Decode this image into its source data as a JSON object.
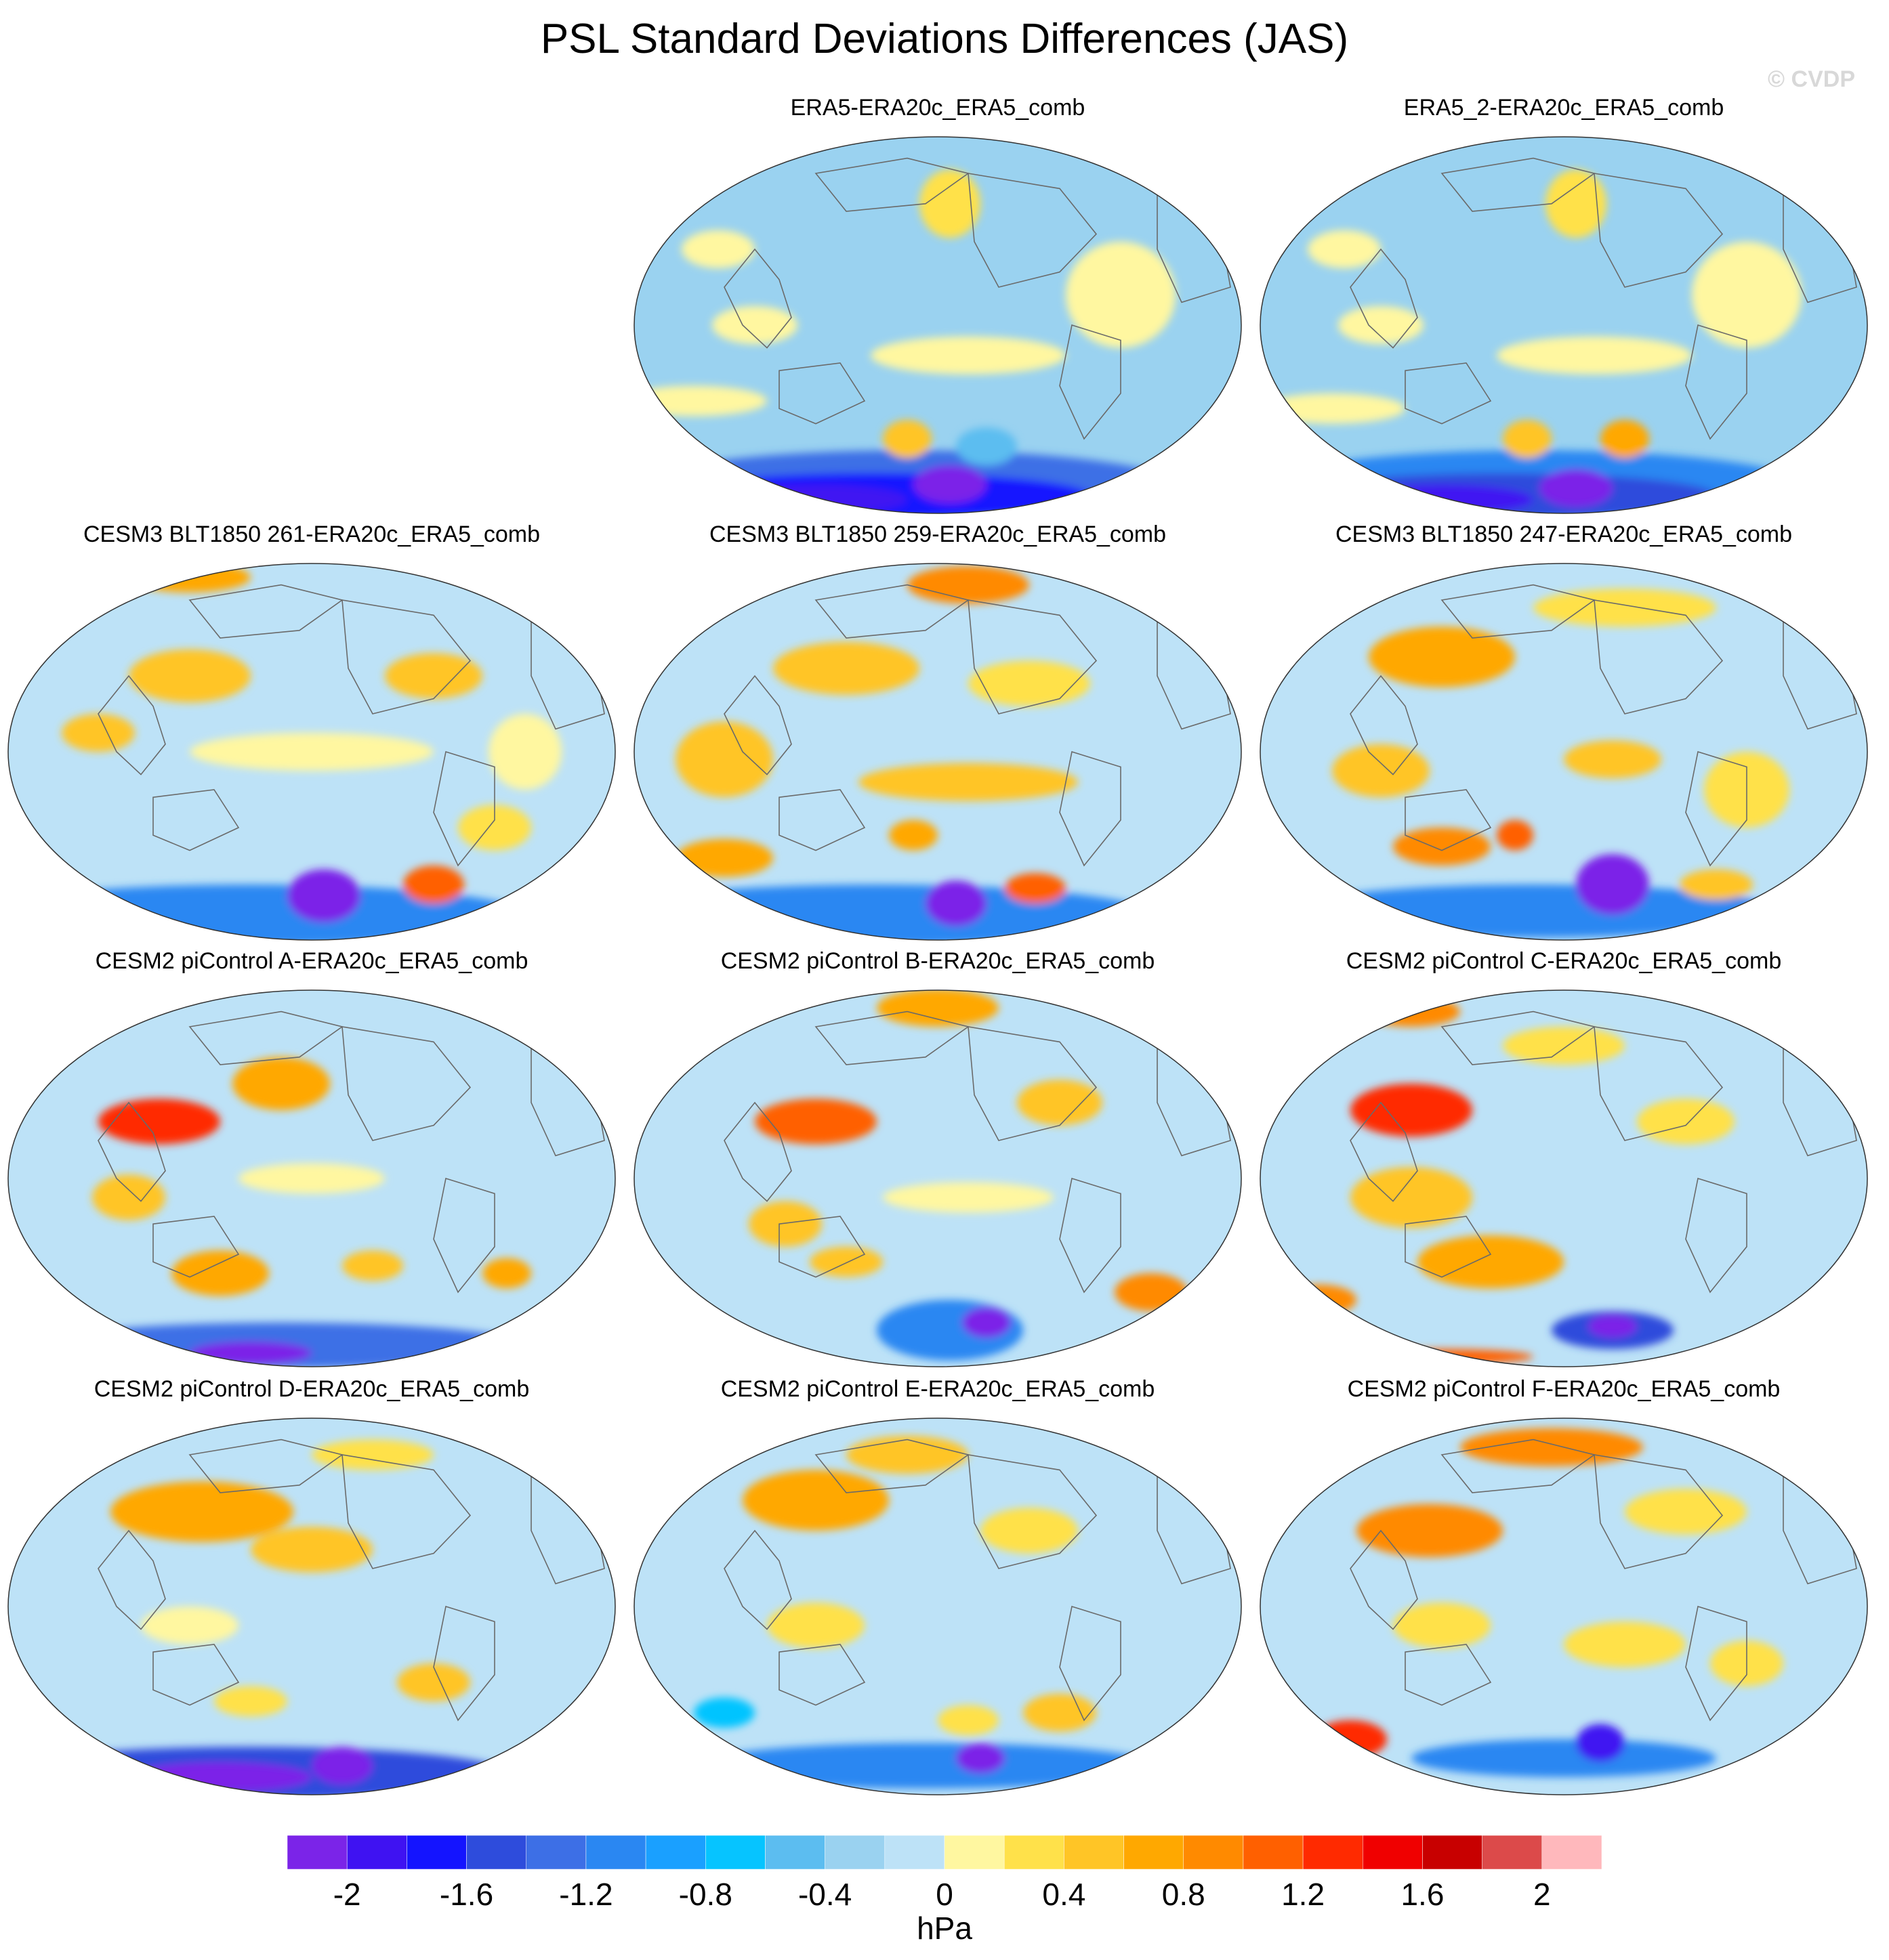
{
  "title": "PSL Standard Deviations Differences (JAS)",
  "watermark": "© CVDP",
  "panels": [
    {
      "title": "ERA5-ERA20c_ERA5_comb",
      "col": 1,
      "row": 0,
      "pattern": "obs1"
    },
    {
      "title": "ERA5_2-ERA20c_ERA5_comb",
      "col": 2,
      "row": 0,
      "pattern": "obs2"
    },
    {
      "title": "CESM3 BLT1850 261-ERA20c_ERA5_comb",
      "col": 0,
      "row": 1,
      "pattern": "b261"
    },
    {
      "title": "CESM3 BLT1850 259-ERA20c_ERA5_comb",
      "col": 1,
      "row": 1,
      "pattern": "b259"
    },
    {
      "title": "CESM3 BLT1850 247-ERA20c_ERA5_comb",
      "col": 2,
      "row": 1,
      "pattern": "b247"
    },
    {
      "title": "CESM2 piControl A-ERA20c_ERA5_comb",
      "col": 0,
      "row": 2,
      "pattern": "pa"
    },
    {
      "title": "CESM2 piControl B-ERA20c_ERA5_comb",
      "col": 1,
      "row": 2,
      "pattern": "pb"
    },
    {
      "title": "CESM2 piControl C-ERA20c_ERA5_comb",
      "col": 2,
      "row": 2,
      "pattern": "pc"
    },
    {
      "title": "CESM2 piControl D-ERA20c_ERA5_comb",
      "col": 0,
      "row": 3,
      "pattern": "pd"
    },
    {
      "title": "CESM2 piControl E-ERA20c_ERA5_comb",
      "col": 1,
      "row": 3,
      "pattern": "pe"
    },
    {
      "title": "CESM2 piControl F-ERA20c_ERA5_comb",
      "col": 2,
      "row": 3,
      "pattern": "pf"
    }
  ],
  "colorbar": {
    "colors": [
      "#7b24e8",
      "#3f12f2",
      "#1414ff",
      "#2e4cdc",
      "#3d6fe6",
      "#2a87f2",
      "#1aa0ff",
      "#06c4ff",
      "#5cbdf0",
      "#9ad2f0",
      "#bde2f7",
      "#fff7a0",
      "#ffe14a",
      "#ffc526",
      "#ffa800",
      "#ff8a00",
      "#ff6000",
      "#ff2a00",
      "#f00000",
      "#c80000",
      "#dc4a4a",
      "#ffb8bc"
    ],
    "tick_labels": [
      "-2",
      "-1.6",
      "-1.2",
      "-0.8",
      "-0.4",
      "0",
      "0.4",
      "0.8",
      "1.2",
      "1.6",
      "2"
    ],
    "units": "hPa"
  }
}
